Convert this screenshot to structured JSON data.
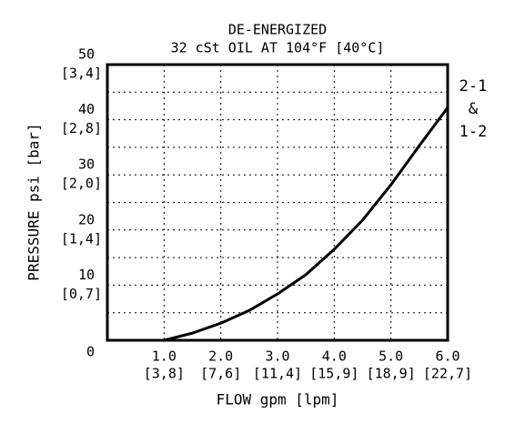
{
  "chart_data": {
    "type": "line",
    "title": "DE-ENERGIZED",
    "subtitle": "32 cSt OIL AT 104°F [40°C]",
    "x_label": "FLOW gpm [lpm]",
    "y_label": "PRESSURE psi [bar]",
    "annotation": [
      "2-1",
      "&",
      "1-2"
    ],
    "x": [
      0,
      1.0,
      1.5,
      2.0,
      2.5,
      3.0,
      3.5,
      4.0,
      4.5,
      5.0,
      5.5,
      6.0
    ],
    "values": [
      0,
      0,
      1.3,
      3.1,
      5.4,
      8.4,
      11.9,
      16.5,
      21.8,
      28.2,
      35.3,
      42.2
    ],
    "color": "#000000",
    "xlim": [
      0,
      6
    ],
    "ylim": [
      0,
      50
    ],
    "xticks": [
      {
        "value": 1,
        "label": "1.0"
      },
      {
        "value": 2,
        "label": "2.0"
      },
      {
        "value": 3,
        "label": "3.0"
      },
      {
        "value": 4,
        "label": "4.0"
      },
      {
        "value": 5,
        "label": "5.0"
      },
      {
        "value": 6,
        "label": "6.0"
      }
    ],
    "xticks_secondary_labels": [
      "[3,8]",
      "[7,6]",
      "[11,4]",
      "[15,9]",
      "[18,9]",
      "[22,7]"
    ],
    "yticks": [
      0,
      10,
      20,
      30,
      40,
      50
    ],
    "yticks_secondary_labels": [
      null,
      "[0,7]",
      "[1,4]",
      "[2,0]",
      "[2,8]",
      "[3,4]"
    ],
    "ygrid": [
      5,
      10,
      15,
      20,
      25,
      30,
      35,
      40,
      45
    ],
    "grid": true
  }
}
